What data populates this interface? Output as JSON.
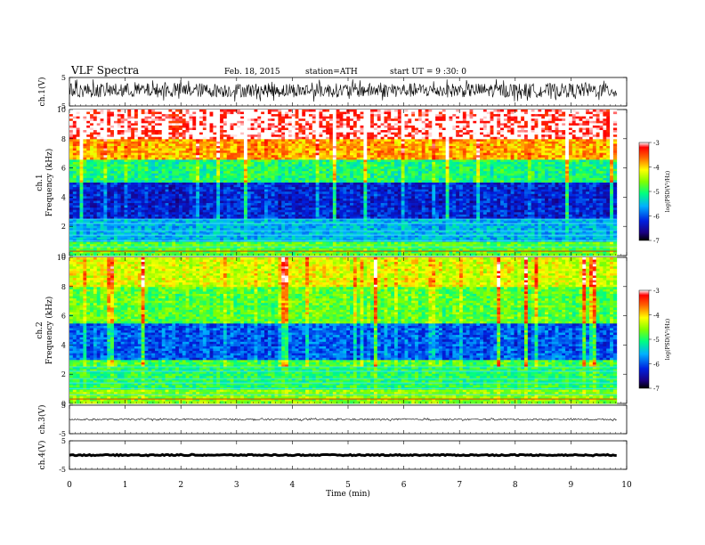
{
  "header": {
    "title": "VLF Spectra",
    "date": "Feb. 18, 2015",
    "station": "station=ATH",
    "start": "start UT =   9 :30: 0"
  },
  "chart_data": [
    {
      "type": "line",
      "name": "ch1-waveform",
      "ylabel": "ch.1(V)",
      "ylim": [
        -5,
        5
      ],
      "yticks": [
        "5",
        "-5"
      ],
      "description_level": 0.5,
      "amplitude": 2.5
    },
    {
      "type": "heatmap",
      "name": "ch1-spectrogram",
      "ylabel_top": "ch.1",
      "ylabel": "Frequency (kHz)",
      "ylim": [
        0,
        10
      ],
      "yticks": [
        "0",
        "2",
        "4",
        "6",
        "8",
        "10"
      ],
      "colorbar": {
        "label": "log(PSD(V²/Hz)",
        "range": [
          -7,
          -3
        ],
        "ticks": [
          "-3",
          "-4",
          "-5",
          "-6",
          "-7"
        ]
      }
    },
    {
      "type": "heatmap",
      "name": "ch2-spectrogram",
      "ylabel_top": "ch.2",
      "ylabel": "Frequency (kHz)",
      "ylim": [
        0,
        10
      ],
      "yticks": [
        "0",
        "2",
        "4",
        "6",
        "8",
        "10"
      ],
      "colorbar": {
        "label": "log(PSD(V²/Hz)",
        "range": [
          -7,
          -3
        ],
        "ticks": [
          "-3",
          "-4",
          "-5",
          "-6",
          "-7"
        ]
      }
    },
    {
      "type": "line",
      "name": "ch3-waveform",
      "ylabel": "ch.3(V)",
      "ylim": [
        -5,
        5
      ],
      "yticks": [
        "5",
        "-5"
      ],
      "level": 0.0,
      "amplitude": 0.3
    },
    {
      "type": "line",
      "name": "ch4-waveform",
      "ylabel": "ch.4(V)",
      "ylim": [
        -5,
        5
      ],
      "yticks": [
        "5",
        "-5"
      ],
      "level": 0.0,
      "amplitude": 0.2
    }
  ],
  "x_axis": {
    "label": "Time (min)",
    "range": [
      0,
      10
    ],
    "data_end": 9.82,
    "ticks": [
      "0",
      "1",
      "2",
      "3",
      "4",
      "5",
      "6",
      "7",
      "8",
      "9",
      "10"
    ]
  }
}
